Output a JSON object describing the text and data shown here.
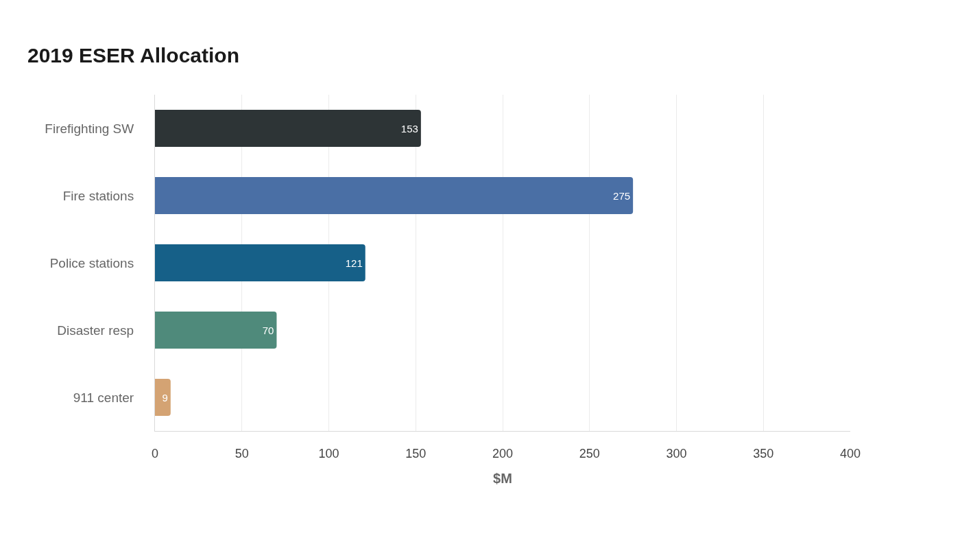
{
  "chart_data": {
    "type": "bar",
    "orientation": "horizontal",
    "title": "2019 ESER Allocation",
    "xlabel": "$M",
    "categories": [
      "Firefighting SW",
      "Fire stations",
      "Police stations",
      "Disaster resp",
      "911 center"
    ],
    "values": [
      153,
      275,
      121,
      70,
      9
    ],
    "colors": [
      "#2d3436",
      "#4a6fa5",
      "#166088",
      "#4f8a7b",
      "#d4a373"
    ],
    "xlim": [
      0,
      400
    ],
    "xticks": [
      0,
      50,
      100,
      150,
      200,
      250,
      300,
      350,
      400
    ],
    "grid": "x",
    "data_labels": true
  }
}
